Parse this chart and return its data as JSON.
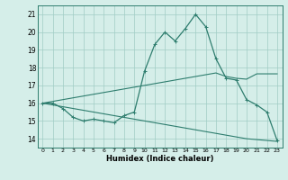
{
  "xlabel": "Humidex (Indice chaleur)",
  "x": [
    0,
    1,
    2,
    3,
    4,
    5,
    6,
    7,
    8,
    9,
    10,
    11,
    12,
    13,
    14,
    15,
    16,
    17,
    18,
    19,
    20,
    21,
    22,
    23
  ],
  "main_line": [
    16.0,
    16.0,
    15.7,
    15.2,
    15.0,
    15.1,
    15.0,
    14.9,
    15.3,
    15.5,
    17.8,
    19.3,
    20.0,
    19.5,
    20.2,
    21.0,
    20.3,
    18.5,
    17.4,
    17.3,
    16.2,
    15.9,
    15.5,
    13.9
  ],
  "upper_line": [
    16.0,
    16.1,
    16.2,
    16.3,
    16.4,
    16.5,
    16.6,
    16.7,
    16.8,
    16.9,
    17.0,
    17.1,
    17.2,
    17.3,
    17.4,
    17.5,
    17.6,
    17.7,
    17.5,
    17.4,
    17.35,
    17.65,
    17.65,
    17.65
  ],
  "lower_line": [
    16.0,
    15.9,
    15.8,
    15.7,
    15.6,
    15.5,
    15.4,
    15.3,
    15.2,
    15.1,
    15.0,
    14.9,
    14.8,
    14.7,
    14.6,
    14.5,
    14.4,
    14.3,
    14.2,
    14.1,
    14.0,
    13.95,
    13.9,
    13.85
  ],
  "line_color": "#2e7d6e",
  "bg_color": "#d5eee9",
  "grid_color": "#a0ccc5",
  "ylim": [
    13.5,
    21.5
  ],
  "yticks": [
    14,
    15,
    16,
    17,
    18,
    19,
    20,
    21
  ],
  "xlim": [
    -0.5,
    23.5
  ],
  "xtick_fontsize": 4.5,
  "ytick_fontsize": 5.5,
  "xlabel_fontsize": 6.0
}
